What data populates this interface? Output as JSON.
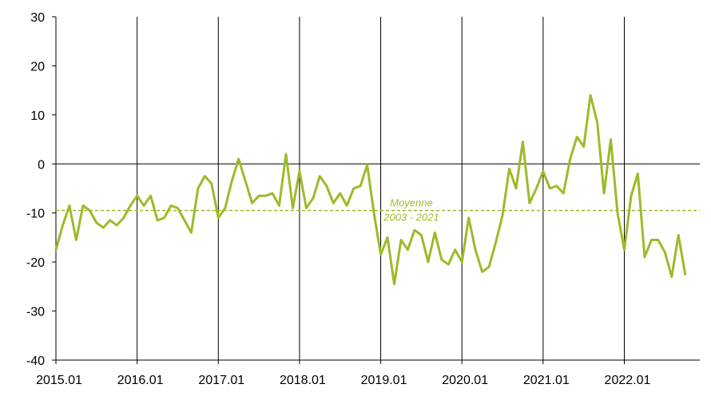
{
  "chart_data": {
    "type": "line",
    "title": "",
    "xlabel": "",
    "ylabel": "",
    "ylim": [
      -40,
      30
    ],
    "yticks": [
      30,
      20,
      10,
      0,
      -10,
      -20,
      -30,
      -40
    ],
    "x_start": "2015.01",
    "x_tick_labels": [
      "2015.01",
      "2016.01",
      "2017.01",
      "2018.01",
      "2019.01",
      "2020.01",
      "2021.01",
      "2022.01"
    ],
    "grid": "vertical lines at year starts",
    "line_color": "#9bbb29",
    "reference_line": {
      "value": -9.5,
      "label_line1": "Moyenne",
      "label_line2": "2003 - 2021",
      "color": "#9bbb29",
      "style": "dashed"
    },
    "series": [
      {
        "values": [
          -17.5,
          -12.5,
          -8.5,
          -15.5,
          -8.5,
          -9.5,
          -12,
          -13,
          -11.5,
          -12.5,
          -11,
          -8.5,
          -6.5,
          -8.5,
          -6.5,
          -11.5,
          -11,
          -8.5,
          -9,
          -11.5,
          -14,
          -5,
          -2.5,
          -4,
          -11,
          -9,
          -3.5,
          1,
          -3.5,
          -8,
          -6.5,
          -6.5,
          -6,
          -8.5,
          2,
          -9,
          -1.5,
          -9,
          -7,
          -2.5,
          -4.5,
          -8,
          -6,
          -8.5,
          -5,
          -4.5,
          -0.2,
          -10,
          -18.5,
          -15,
          -24.5,
          -15.5,
          -17.5,
          -13.5,
          -14.5,
          -20,
          -14,
          -19.5,
          -20.5,
          -17.5,
          -20,
          -11,
          -17.5,
          -22,
          -21,
          -16,
          -10.5,
          -1,
          -5,
          4.5,
          -8,
          -5,
          -1.5,
          -5,
          -4.5,
          -6,
          1,
          5.5,
          3.5,
          14,
          8.5,
          -6,
          5,
          -10,
          -17.5,
          -6.5,
          -2,
          -19,
          -15.5,
          -15.5,
          -18,
          -23,
          -14.5,
          -22.5
        ]
      }
    ]
  }
}
